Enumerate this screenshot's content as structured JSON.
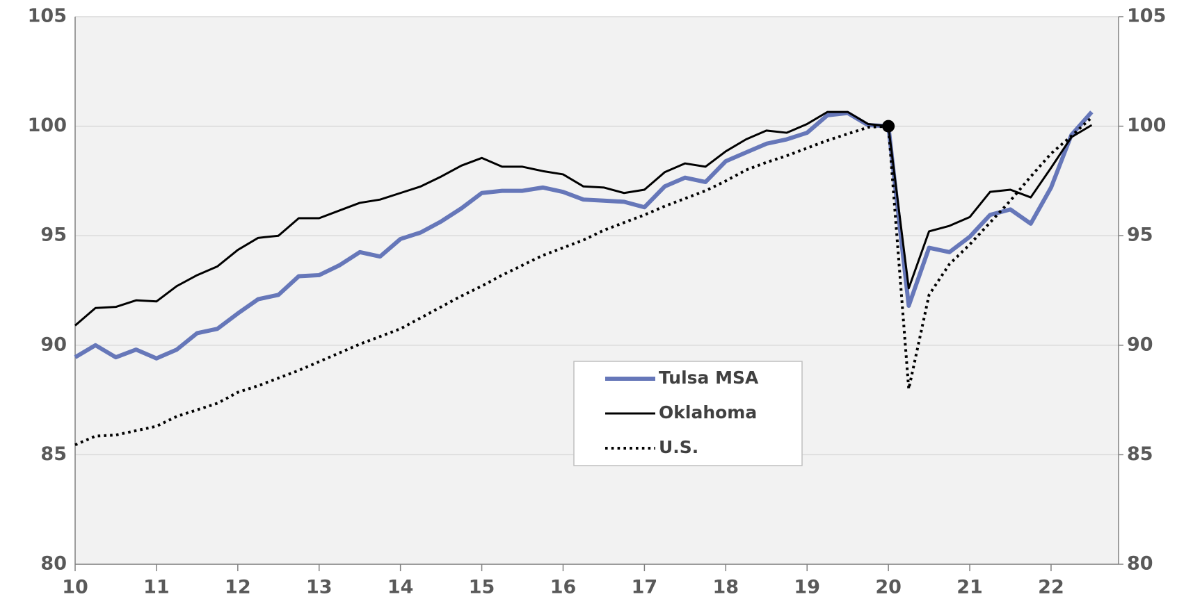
{
  "chart_data": {
    "type": "line",
    "x": [
      10,
      10.25,
      10.5,
      10.75,
      11,
      11.25,
      11.5,
      11.75,
      12,
      12.25,
      12.5,
      12.75,
      13,
      13.25,
      13.5,
      13.75,
      14,
      14.25,
      14.5,
      14.75,
      15,
      15.25,
      15.5,
      15.75,
      16,
      16.25,
      16.5,
      16.75,
      17,
      17.25,
      17.5,
      17.75,
      18,
      18.25,
      18.5,
      18.75,
      19,
      19.25,
      19.5,
      19.75,
      20,
      20.25,
      20.5,
      20.75,
      21,
      21.25,
      21.5,
      21.75,
      22,
      22.25,
      22.5
    ],
    "series": [
      {
        "name": "Tulsa MSA",
        "color": "#6677b9",
        "width": 6,
        "dash": "solid",
        "values": [
          89.45,
          90.0,
          89.45,
          89.8,
          89.4,
          89.8,
          90.55,
          90.75,
          91.45,
          92.1,
          92.3,
          93.15,
          93.2,
          93.65,
          94.25,
          94.05,
          94.85,
          95.15,
          95.65,
          96.25,
          96.95,
          97.05,
          97.05,
          97.2,
          97.0,
          96.65,
          96.6,
          96.55,
          96.3,
          97.25,
          97.65,
          97.45,
          98.4,
          98.8,
          99.2,
          99.4,
          99.7,
          100.5,
          100.6,
          100.05,
          100.0,
          91.8,
          94.45,
          94.25,
          94.95,
          95.95,
          96.2,
          95.55,
          97.2,
          99.6,
          100.65
        ]
      },
      {
        "name": "Oklahoma",
        "color": "#000000",
        "width": 3,
        "dash": "solid",
        "values": [
          90.9,
          91.7,
          91.75,
          92.05,
          92.0,
          92.7,
          93.2,
          93.6,
          94.35,
          94.9,
          95.0,
          95.8,
          95.8,
          96.15,
          96.5,
          96.65,
          96.95,
          97.25,
          97.7,
          98.2,
          98.55,
          98.15,
          98.15,
          97.95,
          97.8,
          97.25,
          97.2,
          96.95,
          97.1,
          97.9,
          98.3,
          98.15,
          98.85,
          99.4,
          99.8,
          99.7,
          100.1,
          100.65,
          100.65,
          100.1,
          100.0,
          92.6,
          95.2,
          95.45,
          95.85,
          97.0,
          97.1,
          96.75,
          98.1,
          99.5,
          100.05
        ]
      },
      {
        "name": "U.S.",
        "color": "#000000",
        "width": 4,
        "dash": "dotted",
        "values": [
          85.45,
          85.85,
          85.9,
          86.1,
          86.3,
          86.75,
          87.05,
          87.35,
          87.85,
          88.15,
          88.5,
          88.85,
          89.25,
          89.65,
          90.05,
          90.4,
          90.75,
          91.25,
          91.75,
          92.25,
          92.7,
          93.2,
          93.65,
          94.1,
          94.45,
          94.8,
          95.25,
          95.6,
          95.95,
          96.35,
          96.7,
          97.05,
          97.5,
          98.0,
          98.35,
          98.65,
          99.0,
          99.35,
          99.65,
          99.95,
          100.0,
          88.0,
          92.3,
          93.7,
          94.6,
          95.6,
          96.6,
          97.7,
          98.75,
          99.55,
          100.4
        ]
      }
    ],
    "highlight": {
      "x": 20,
      "y": 100
    },
    "xlim": [
      10,
      22.83
    ],
    "xticks": [
      10,
      11,
      12,
      13,
      14,
      15,
      16,
      17,
      18,
      19,
      20,
      21,
      22
    ],
    "ylim": [
      80,
      105
    ],
    "yticks": [
      80,
      85,
      90,
      95,
      100,
      105
    ],
    "y2lim": [
      80,
      105
    ],
    "y2ticks": [
      80,
      85,
      90,
      95,
      100,
      105
    ],
    "grid": true
  }
}
